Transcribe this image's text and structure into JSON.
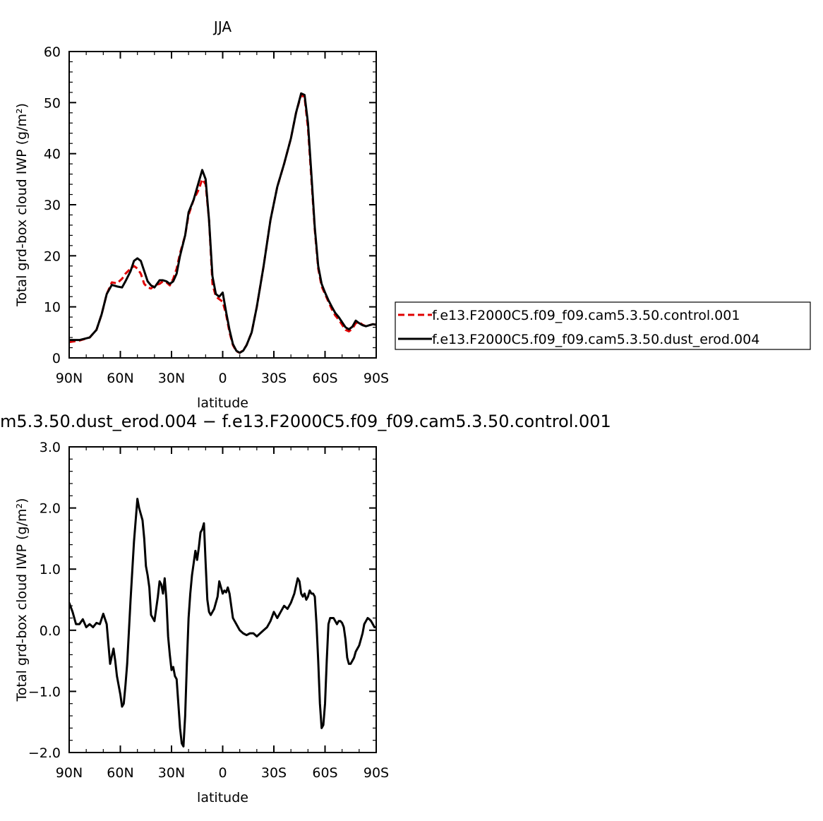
{
  "chart_data": [
    {
      "type": "line",
      "title": "JJA",
      "xlabel": "latitude",
      "ylabel": "Total grd-box cloud IWP (g/m²)",
      "xticks": [
        "90N",
        "60N",
        "30N",
        "0",
        "30S",
        "60S",
        "90S"
      ],
      "x_range": [
        90,
        -90
      ],
      "ylim": [
        0,
        60
      ],
      "yticks": [
        "0",
        "10",
        "20",
        "30",
        "40",
        "50",
        "60"
      ],
      "grid": false,
      "legend_position": "right",
      "series": [
        {
          "name": "f.e13.F2000C5.f09_f09.cam5.3.50.control.001",
          "color": "#e00000",
          "dash": "dashed",
          "x": [
            90,
            84,
            78,
            74,
            71,
            68,
            65,
            62,
            59,
            57,
            54,
            52,
            50,
            48,
            46,
            44,
            42,
            40,
            37,
            35,
            33,
            31,
            29,
            27,
            25,
            22,
            20,
            17,
            14,
            12,
            10,
            8,
            6,
            4,
            2,
            0,
            -2,
            -4,
            -6,
            -8,
            -10,
            -12,
            -14,
            -17,
            -20,
            -24,
            -28,
            -32,
            -36,
            -40,
            -43,
            -46,
            -48,
            -50,
            -52,
            -54,
            -56,
            -58,
            -60,
            -62,
            -64,
            -66,
            -68,
            -70,
            -72,
            -74,
            -76,
            -78,
            -80,
            -82,
            -84,
            -86,
            -88,
            -90
          ],
          "y": [
            3.1,
            3.4,
            4.0,
            5.5,
            8.5,
            12.5,
            14.8,
            14.6,
            15.5,
            16.5,
            17.5,
            18.0,
            17.5,
            16.5,
            14.5,
            13.8,
            13.6,
            14.2,
            14.5,
            15.0,
            14.8,
            14.2,
            15.5,
            17.5,
            20.5,
            24.0,
            28.0,
            31.0,
            33.0,
            35.0,
            34.0,
            27.0,
            14.5,
            12.0,
            11.5,
            11.0,
            8.5,
            5.0,
            2.5,
            1.3,
            1.0,
            1.5,
            2.5,
            5.0,
            10.0,
            18.0,
            27.0,
            33.5,
            38.0,
            43.0,
            48.0,
            51.5,
            51.0,
            45.0,
            35.0,
            25.0,
            17.5,
            14.0,
            12.5,
            11.0,
            9.5,
            8.3,
            7.5,
            6.5,
            5.5,
            5.2,
            5.7,
            6.8,
            7.0,
            6.5,
            6.2,
            6.4,
            6.6,
            6.5
          ]
        },
        {
          "name": "f.e13.F2000C5.f09_f09.cam5.3.50.dust_erod.004",
          "color": "#000000",
          "dash": "solid",
          "x": [
            90,
            84,
            78,
            74,
            71,
            68,
            65,
            62,
            59,
            57,
            54,
            52,
            50,
            48,
            46,
            44,
            42,
            40,
            37,
            35,
            33,
            31,
            29,
            27,
            25,
            22,
            20,
            17,
            14,
            12,
            10,
            8,
            6,
            4,
            2,
            0,
            -2,
            -4,
            -6,
            -8,
            -10,
            -12,
            -14,
            -17,
            -20,
            -24,
            -28,
            -32,
            -36,
            -40,
            -43,
            -46,
            -48,
            -50,
            -52,
            -54,
            -56,
            -58,
            -60,
            -62,
            -64,
            -66,
            -68,
            -70,
            -72,
            -74,
            -76,
            -78,
            -80,
            -82,
            -84,
            -86,
            -88,
            -90
          ],
          "y": [
            3.5,
            3.5,
            4.0,
            5.5,
            8.5,
            12.5,
            14.3,
            14.0,
            13.8,
            15.0,
            17.0,
            19.0,
            19.5,
            19.0,
            17.0,
            15.0,
            14.2,
            13.8,
            15.2,
            15.2,
            15.0,
            14.5,
            15.0,
            16.5,
            20.0,
            24.0,
            28.5,
            31.0,
            34.5,
            36.8,
            35.0,
            27.0,
            16.0,
            12.5,
            12.0,
            12.8,
            9.0,
            5.5,
            2.7,
            1.4,
            1.0,
            1.4,
            2.5,
            5.0,
            10.0,
            18.0,
            27.0,
            33.5,
            38.0,
            43.0,
            48.0,
            51.8,
            51.5,
            46.0,
            36.0,
            25.5,
            18.0,
            14.5,
            12.8,
            11.3,
            10.0,
            8.8,
            8.0,
            7.0,
            6.0,
            5.6,
            6.1,
            7.3,
            6.8,
            6.4,
            6.2,
            6.4,
            6.6,
            6.5
          ]
        }
      ]
    },
    {
      "type": "line",
      "title": "m5.3.50.dust_erod.004  −  f.e13.F2000C5.f09_f09.cam5.3.50.control.001",
      "xlabel": "latitude",
      "ylabel": "Total grd-box cloud IWP (g/m²)",
      "xticks": [
        "90N",
        "60N",
        "30N",
        "0",
        "30S",
        "60S",
        "90S"
      ],
      "x_range": [
        90,
        -90
      ],
      "ylim": [
        -2.0,
        3.0
      ],
      "yticks": [
        "−2.0",
        "−1.0",
        "0.0",
        "1.0",
        "2.0",
        "3.0"
      ],
      "grid": false,
      "series": [
        {
          "color": "#000000",
          "dash": "solid",
          "x": [
            90,
            88,
            86,
            84,
            82,
            80,
            78,
            76,
            74,
            72,
            70,
            68,
            66,
            64,
            63,
            62,
            61,
            60,
            59,
            58,
            57,
            56,
            54,
            52,
            51,
            50,
            49,
            48,
            47,
            46,
            45,
            44,
            43,
            42,
            40,
            38,
            37,
            36,
            35,
            34,
            33,
            32,
            31,
            30,
            29,
            28,
            27,
            26,
            25,
            24,
            23,
            22,
            21,
            20,
            19,
            18,
            17,
            16,
            15,
            14,
            13,
            12,
            11,
            10,
            9,
            8,
            7,
            6,
            5,
            4,
            3,
            2,
            1,
            0,
            -1,
            -2,
            -3,
            -4,
            -5,
            -6,
            -7,
            -8,
            -10,
            -12,
            -14,
            -16,
            -18,
            -20,
            -22,
            -24,
            -26,
            -28,
            -30,
            -32,
            -34,
            -36,
            -38,
            -40,
            -42,
            -44,
            -45,
            -46,
            -47,
            -48,
            -49,
            -50,
            -51,
            -52,
            -53,
            -54,
            -55,
            -56,
            -57,
            -58,
            -59,
            -60,
            -61,
            -62,
            -63,
            -64,
            -65,
            -66,
            -67,
            -68,
            -69,
            -70,
            -71,
            -72,
            -73,
            -74,
            -75,
            -76,
            -77,
            -78,
            -79,
            -80,
            -81,
            -82,
            -83,
            -84,
            -85,
            -86,
            -87,
            -88,
            -89,
            -90
          ],
          "y": [
            0.45,
            0.3,
            0.1,
            0.1,
            0.18,
            0.05,
            0.1,
            0.05,
            0.12,
            0.1,
            0.27,
            0.1,
            -0.55,
            -0.3,
            -0.5,
            -0.75,
            -0.9,
            -1.05,
            -1.25,
            -1.2,
            -0.9,
            -0.55,
            0.5,
            1.45,
            1.8,
            2.15,
            2.0,
            1.9,
            1.8,
            1.5,
            1.05,
            0.9,
            0.7,
            0.25,
            0.15,
            0.55,
            0.8,
            0.75,
            0.6,
            0.85,
            0.5,
            -0.1,
            -0.4,
            -0.65,
            -0.6,
            -0.75,
            -0.8,
            -1.2,
            -1.6,
            -1.85,
            -1.9,
            -1.4,
            -0.55,
            0.2,
            0.6,
            0.9,
            1.1,
            1.3,
            1.15,
            1.35,
            1.6,
            1.65,
            1.75,
            1.1,
            0.5,
            0.3,
            0.25,
            0.3,
            0.35,
            0.45,
            0.55,
            0.8,
            0.7,
            0.6,
            0.65,
            0.62,
            0.7,
            0.6,
            0.4,
            0.2,
            0.15,
            0.1,
            0.0,
            -0.05,
            -0.08,
            -0.05,
            -0.05,
            -0.1,
            -0.05,
            0.0,
            0.05,
            0.15,
            0.3,
            0.2,
            0.3,
            0.4,
            0.35,
            0.45,
            0.6,
            0.85,
            0.8,
            0.6,
            0.55,
            0.6,
            0.5,
            0.55,
            0.65,
            0.6,
            0.6,
            0.55,
            0.1,
            -0.5,
            -1.2,
            -1.6,
            -1.55,
            -1.2,
            -0.5,
            0.1,
            0.2,
            0.2,
            0.2,
            0.15,
            0.1,
            0.15,
            0.15,
            0.12,
            0.05,
            -0.15,
            -0.45,
            -0.55,
            -0.55,
            -0.5,
            -0.45,
            -0.35,
            -0.3,
            -0.25,
            -0.15,
            -0.05,
            0.1,
            0.15,
            0.2,
            0.18,
            0.15,
            0.1,
            0.05,
            0.05
          ]
        }
      ]
    }
  ]
}
